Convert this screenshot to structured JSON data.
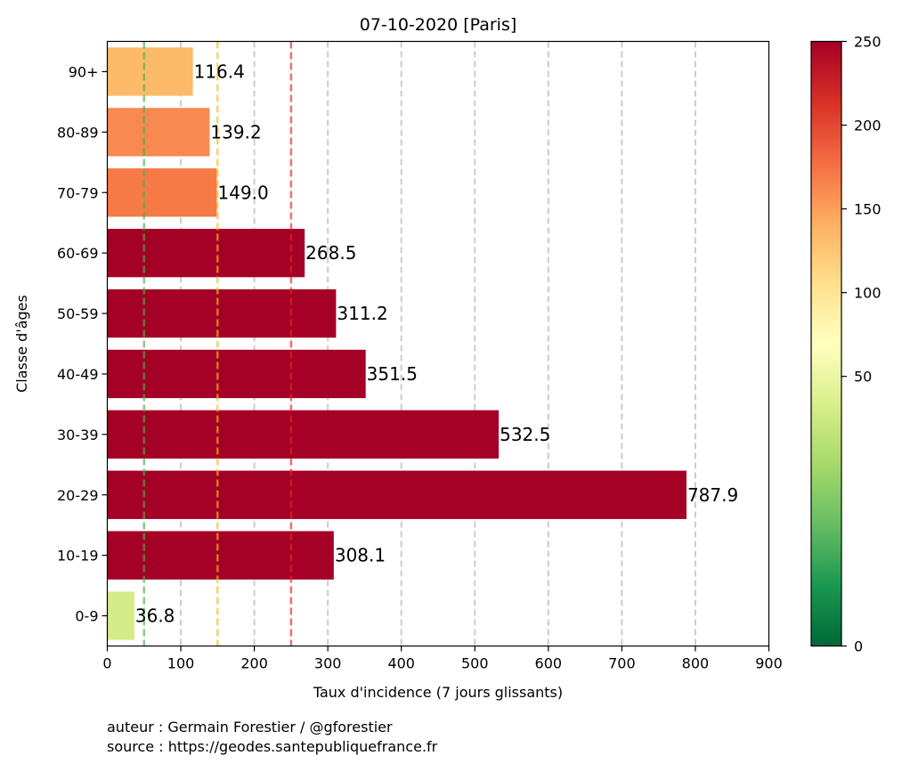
{
  "chart_data": {
    "type": "bar",
    "orientation": "horizontal",
    "title": "07-10-2020 [Paris]",
    "xlabel": "Taux d'incidence (7 jours glissants)",
    "ylabel": "Classe d'âges",
    "categories": [
      "0-9",
      "10-19",
      "20-29",
      "30-39",
      "40-49",
      "50-59",
      "60-69",
      "70-79",
      "80-89",
      "90+"
    ],
    "values": [
      36.8,
      308.1,
      787.9,
      532.5,
      351.5,
      311.2,
      268.5,
      149.0,
      139.2,
      116.4
    ],
    "value_labels": [
      "36.8",
      "308.1",
      "787.9",
      "532.5",
      "351.5",
      "311.2",
      "268.5",
      "149.0",
      "139.2",
      "116.4"
    ],
    "bar_colors": [
      "#d3ec87",
      "#a50026",
      "#a50026",
      "#a50026",
      "#a50026",
      "#a50026",
      "#a50026",
      "#f57a45",
      "#f88950",
      "#fdba69"
    ],
    "xlim": [
      0,
      900
    ],
    "xticks": [
      0,
      100,
      200,
      300,
      400,
      500,
      600,
      700,
      800,
      900
    ],
    "vertical_gridlines": [
      100,
      200,
      300,
      400,
      500,
      600,
      700,
      800
    ],
    "reference_lines": [
      {
        "x": 50,
        "color": "#4daf4a"
      },
      {
        "x": 150,
        "color": "#f4b820"
      },
      {
        "x": 250,
        "color": "#e8261f"
      }
    ],
    "colorbar": {
      "range": [
        0,
        250
      ],
      "ticks": [
        0,
        50,
        100,
        150,
        200,
        250
      ],
      "colormap": "RdYlGn_r"
    }
  },
  "footer": {
    "author": "auteur : Germain Forestier / @gforestier",
    "source": "source : https://geodes.santepubliquefrance.fr"
  }
}
